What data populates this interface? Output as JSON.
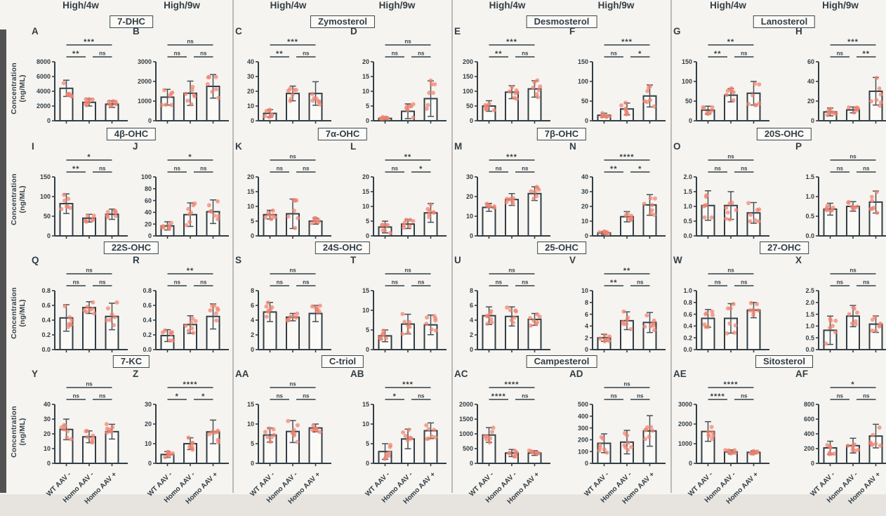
{
  "figure": {
    "colors": {
      "ink": "#323e46",
      "point": "#f0826f",
      "bar_fill": "#fbfaf7",
      "background": "#f6f4f0",
      "divider": "#bdbab5",
      "error_bar": "#46525a"
    }
  },
  "chart_data": {
    "type": "bar",
    "ylabel": "Concentration (ng/ML)",
    "column_headers": [
      "High/4w",
      "High/9w"
    ],
    "categories": [
      "WT AAV -",
      "Homo AAV -",
      "Homo AAV +"
    ],
    "legend_position": "none",
    "grid": false,
    "panels": [
      {
        "id": "A",
        "sterol": "7-DHC",
        "condition": "High/4w",
        "ymax": 8000,
        "yticks": [
          0,
          2000,
          4000,
          6000,
          8000
        ],
        "values": [
          4400,
          2500,
          2250
        ],
        "errors": [
          1100,
          500,
          450
        ],
        "sig": {
          "p12": "**",
          "p23": "ns",
          "p13": "***"
        }
      },
      {
        "id": "B",
        "sterol": "7-DHC",
        "condition": "High/9w",
        "ymax": 3000,
        "yticks": [
          0,
          1000,
          2000,
          3000
        ],
        "values": [
          1200,
          1400,
          1750
        ],
        "errors": [
          400,
          620,
          600
        ],
        "sig": {
          "p12": "ns",
          "p23": "ns",
          "p13": "ns"
        }
      },
      {
        "id": "C",
        "sterol": "Zymosterol",
        "condition": "High/4w",
        "ymax": 40,
        "yticks": [
          0,
          10,
          20,
          30,
          40
        ],
        "values": [
          5,
          18.5,
          18.5
        ],
        "errors": [
          2.5,
          5,
          8
        ],
        "sig": {
          "p12": "**",
          "p23": "ns",
          "p13": "***"
        }
      },
      {
        "id": "D",
        "sterol": "Zymosterol",
        "condition": "High/9w",
        "ymax": 20,
        "yticks": [
          0,
          5,
          10,
          15,
          20
        ],
        "values": [
          0.8,
          3.2,
          7.5
        ],
        "errors": [
          0.5,
          2.5,
          6
        ],
        "sig": {
          "p12": "ns",
          "p23": "ns",
          "p13": "ns"
        }
      },
      {
        "id": "E",
        "sterol": "Desmosterol",
        "condition": "High/4w",
        "ymax": 200,
        "yticks": [
          0,
          50,
          100,
          150,
          200
        ],
        "values": [
          50,
          97,
          108
        ],
        "errors": [
          18,
          22,
          28
        ],
        "sig": {
          "p12": "**",
          "p23": "ns",
          "p13": "***"
        }
      },
      {
        "id": "F",
        "sterol": "Desmosterol",
        "condition": "High/9w",
        "ymax": 150,
        "yticks": [
          0,
          50,
          100,
          150
        ],
        "values": [
          14,
          30,
          63
        ],
        "errors": [
          5,
          15,
          28
        ],
        "sig": {
          "p12": "ns",
          "p23": "*",
          "p13": "***"
        }
      },
      {
        "id": "G",
        "sterol": "Lanosterol",
        "condition": "High/4w",
        "ymax": 150,
        "yticks": [
          0,
          50,
          100,
          150
        ],
        "values": [
          27,
          65,
          70
        ],
        "errors": [
          10,
          17,
          30
        ],
        "sig": {
          "p12": "**",
          "p23": "ns",
          "p13": "**"
        }
      },
      {
        "id": "H",
        "sterol": "Lanosterol",
        "condition": "High/9w",
        "ymax": 60,
        "yticks": [
          0,
          20,
          40,
          60
        ],
        "values": [
          9,
          11,
          30
        ],
        "errors": [
          4,
          3,
          14
        ],
        "sig": {
          "p12": "ns",
          "p23": "**",
          "p13": "***"
        }
      },
      {
        "id": "I",
        "sterol": "4β-OHC",
        "condition": "High/4w",
        "ymax": 150,
        "yticks": [
          0,
          50,
          100,
          150
        ],
        "values": [
          82,
          45,
          55
        ],
        "errors": [
          25,
          10,
          13
        ],
        "sig": {
          "p12": "**",
          "p23": "ns",
          "p13": "*"
        }
      },
      {
        "id": "J",
        "sterol": "4β-OHC",
        "condition": "High/9w",
        "ymax": 100,
        "yticks": [
          0,
          20,
          40,
          60,
          80,
          100
        ],
        "values": [
          17,
          36,
          41
        ],
        "errors": [
          7,
          20,
          20
        ],
        "sig": {
          "p12": "ns",
          "p23": "ns",
          "p13": "*"
        }
      },
      {
        "id": "K",
        "sterol": "7α-OHC",
        "condition": "High/4w",
        "ymax": 20,
        "yticks": [
          0,
          5,
          10,
          15,
          20
        ],
        "values": [
          7.2,
          7.5,
          5
        ],
        "errors": [
          1.5,
          5,
          1
        ],
        "sig": {
          "p12": "ns",
          "p23": "ns",
          "p13": "ns"
        }
      },
      {
        "id": "L",
        "sterol": "7α-OHC",
        "condition": "High/9w",
        "ymax": 20,
        "yticks": [
          0,
          5,
          10,
          15,
          20
        ],
        "values": [
          3,
          4,
          7.8
        ],
        "errors": [
          2,
          1.5,
          3.2
        ],
        "sig": {
          "p12": "ns",
          "p23": "*",
          "p13": "**"
        }
      },
      {
        "id": "M",
        "sterol": "7β-OHC",
        "condition": "High/4w",
        "ymax": 30,
        "yticks": [
          0,
          10,
          20,
          30
        ],
        "values": [
          14.5,
          18.5,
          21.5
        ],
        "errors": [
          2,
          3,
          3.5
        ],
        "sig": {
          "p12": "ns",
          "p23": "ns",
          "p13": "***"
        }
      },
      {
        "id": "N",
        "sterol": "7β-OHC",
        "condition": "High/9w",
        "ymax": 40,
        "yticks": [
          0,
          10,
          20,
          30,
          40
        ],
        "values": [
          2,
          13,
          21
        ],
        "errors": [
          1,
          3.5,
          7
        ],
        "sig": {
          "p12": "**",
          "p23": "*",
          "p13": "****"
        }
      },
      {
        "id": "O",
        "sterol": "20S-OHC",
        "condition": "High/4w",
        "ymax": 2,
        "yticks": [
          0,
          0.5,
          1,
          1.5,
          2
        ],
        "values": [
          1.03,
          1.03,
          0.78
        ],
        "errors": [
          0.5,
          0.47,
          0.35
        ],
        "sig": {
          "p12": "ns",
          "p23": "ns",
          "p13": "ns"
        }
      },
      {
        "id": "P",
        "sterol": "20S-OHC",
        "condition": "High/9w",
        "ymax": 1.5,
        "yticks": [
          0,
          0.5,
          1,
          1.5
        ],
        "values": [
          0.68,
          0.75,
          0.86
        ],
        "errors": [
          0.15,
          0.12,
          0.28
        ],
        "sig": {
          "p12": "ns",
          "p23": "ns",
          "p13": "ns"
        }
      },
      {
        "id": "Q",
        "sterol": "22S-OHC",
        "condition": "High/4w",
        "ymax": 0.8,
        "yticks": [
          0,
          0.2,
          0.4,
          0.6,
          0.8
        ],
        "values": [
          0.43,
          0.57,
          0.45
        ],
        "errors": [
          0.18,
          0.08,
          0.18
        ],
        "sig": {
          "p12": "ns",
          "p23": "ns",
          "p13": "ns"
        }
      },
      {
        "id": "R",
        "sterol": "22S-OHC",
        "condition": "High/9w",
        "ymax": 0.8,
        "yticks": [
          0,
          0.2,
          0.4,
          0.6,
          0.8
        ],
        "values": [
          0.19,
          0.34,
          0.45
        ],
        "errors": [
          0.08,
          0.12,
          0.17
        ],
        "sig": {
          "p12": "ns",
          "p23": "ns",
          "p13": "**"
        }
      },
      {
        "id": "S",
        "sterol": "24S-OHC",
        "condition": "High/4w",
        "ymax": 8,
        "yticks": [
          0,
          2,
          4,
          6,
          8
        ],
        "values": [
          5.1,
          4.4,
          4.9
        ],
        "errors": [
          1.3,
          0.5,
          1.1
        ],
        "sig": {
          "p12": "ns",
          "p23": "ns",
          "p13": "ns"
        }
      },
      {
        "id": "T",
        "sterol": "24S-OHC",
        "condition": "High/9w",
        "ymax": 15,
        "yticks": [
          0,
          5,
          10,
          15
        ],
        "values": [
          3.5,
          6.5,
          6.3
        ],
        "errors": [
          1.5,
          2.5,
          2.5
        ],
        "sig": {
          "p12": "ns",
          "p23": "ns",
          "p13": "ns"
        }
      },
      {
        "id": "U",
        "sterol": "25-OHC",
        "condition": "High/4w",
        "ymax": 8,
        "yticks": [
          0,
          2,
          4,
          6,
          8
        ],
        "values": [
          4.6,
          4.5,
          4.1
        ],
        "errors": [
          1.2,
          1.3,
          0.8
        ],
        "sig": {
          "p12": "ns",
          "p23": "ns",
          "p13": "ns"
        }
      },
      {
        "id": "V",
        "sterol": "25-OHC",
        "condition": "High/9w",
        "ymax": 10,
        "yticks": [
          0,
          2,
          4,
          6,
          8,
          10
        ],
        "values": [
          2,
          4.9,
          4.6
        ],
        "errors": [
          0.6,
          1.5,
          1.7
        ],
        "sig": {
          "p12": "**",
          "p23": "ns",
          "p13": "**"
        }
      },
      {
        "id": "W",
        "sterol": "27-OHC",
        "condition": "High/4w",
        "ymax": 1,
        "yticks": [
          0,
          0.2,
          0.4,
          0.6,
          0.8,
          1
        ],
        "values": [
          0.53,
          0.53,
          0.67
        ],
        "errors": [
          0.15,
          0.25,
          0.13
        ],
        "sig": {
          "p12": "ns",
          "p23": "ns",
          "p13": "ns"
        }
      },
      {
        "id": "X",
        "sterol": "27-OHC",
        "condition": "High/9w",
        "ymax": 2.5,
        "yticks": [
          0,
          0.5,
          1,
          1.5,
          2,
          2.5
        ],
        "values": [
          0.82,
          1.42,
          1.08
        ],
        "errors": [
          0.6,
          0.45,
          0.35
        ],
        "sig": {
          "p12": "ns",
          "p23": "ns",
          "p13": "ns"
        }
      },
      {
        "id": "Y",
        "sterol": "7-KC",
        "condition": "High/4w",
        "ymax": 40,
        "yticks": [
          0,
          10,
          20,
          30,
          40
        ],
        "values": [
          23,
          18,
          21.5
        ],
        "errors": [
          7,
          4,
          5
        ],
        "sig": {
          "p12": "ns",
          "p23": "ns",
          "p13": "ns"
        }
      },
      {
        "id": "Z",
        "sterol": "7-KC",
        "condition": "High/9w",
        "ymax": 30,
        "yticks": [
          0,
          10,
          20,
          30
        ],
        "values": [
          4.5,
          10,
          16
        ],
        "errors": [
          1.5,
          3,
          6
        ],
        "sig": {
          "p12": "*",
          "p23": "*",
          "p13": "****"
        }
      },
      {
        "id": "AA",
        "sterol": "C-triol",
        "condition": "High/4w",
        "ymax": 15,
        "yticks": [
          0,
          5,
          10,
          15
        ],
        "values": [
          7.2,
          8.1,
          9
        ],
        "errors": [
          1.8,
          2.8,
          1
        ],
        "sig": {
          "p12": "ns",
          "p23": "ns",
          "p13": "ns"
        }
      },
      {
        "id": "AB",
        "sterol": "C-triol",
        "condition": "High/9w",
        "ymax": 15,
        "yticks": [
          0,
          5,
          10,
          15
        ],
        "values": [
          3,
          6.2,
          8.3
        ],
        "errors": [
          2,
          2.5,
          2
        ],
        "sig": {
          "p12": "*",
          "p23": "ns",
          "p13": "***"
        }
      },
      {
        "id": "AC",
        "sterol": "Campesterol",
        "condition": "High/4w",
        "ymax": 2000,
        "yticks": [
          0,
          500,
          1000,
          1500,
          2000
        ],
        "values": [
          960,
          350,
          350
        ],
        "errors": [
          250,
          120,
          80
        ],
        "sig": {
          "p12": "****",
          "p23": "ns",
          "p13": "****"
        }
      },
      {
        "id": "AD",
        "sterol": "Campesterol",
        "condition": "High/9w",
        "ymax": 500,
        "yticks": [
          0,
          100,
          200,
          300,
          400,
          500
        ],
        "values": [
          170,
          180,
          275
        ],
        "errors": [
          80,
          100,
          130
        ],
        "sig": {
          "p12": "ns",
          "p23": "ns",
          "p13": "ns"
        }
      },
      {
        "id": "AE",
        "sterol": "Sitosterol",
        "condition": "High/4w",
        "ymax": 3000,
        "yticks": [
          0,
          1000,
          2000,
          3000
        ],
        "values": [
          1620,
          580,
          560
        ],
        "errors": [
          500,
          100,
          80
        ],
        "sig": {
          "p12": "****",
          "p23": "ns",
          "p13": "****"
        }
      },
      {
        "id": "AF",
        "sterol": "Sitosterol",
        "condition": "High/9w",
        "ymax": 800,
        "yticks": [
          0,
          200,
          400,
          600,
          800
        ],
        "values": [
          210,
          240,
          370
        ],
        "errors": [
          90,
          100,
          160
        ],
        "sig": {
          "p12": "ns",
          "p23": "ns",
          "p13": "*"
        }
      }
    ]
  }
}
